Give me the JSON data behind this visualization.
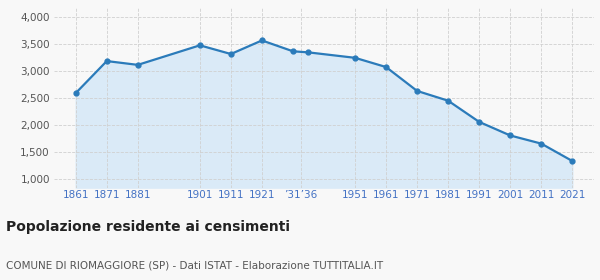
{
  "years": [
    1861,
    1871,
    1881,
    1901,
    1911,
    1921,
    1931,
    1936,
    1951,
    1961,
    1971,
    1981,
    1991,
    2001,
    2011,
    2021
  ],
  "population": [
    2590,
    3180,
    3110,
    3470,
    3310,
    3560,
    3360,
    3340,
    3240,
    3070,
    2630,
    2450,
    2060,
    1810,
    1660,
    1340
  ],
  "yticks": [
    1000,
    1500,
    2000,
    2500,
    3000,
    3500,
    4000
  ],
  "ylim": [
    850,
    4150
  ],
  "xlim_left": 1854,
  "xlim_right": 2028,
  "line_color": "#2b7bba",
  "fill_color": "#daeaf7",
  "marker_color": "#2b7bba",
  "tick_label_color": "#4472c4",
  "y_label_color": "#555555",
  "title": "Popolazione residente ai censimenti",
  "subtitle": "COMUNE DI RIOMAGGIORE (SP) - Dati ISTAT - Elaborazione TUTTITALIA.IT",
  "bg_color": "#f8f8f8",
  "grid_color": "#d0d0d0",
  "title_fontsize": 10,
  "subtitle_fontsize": 7.5,
  "tick_fontsize": 7.5
}
